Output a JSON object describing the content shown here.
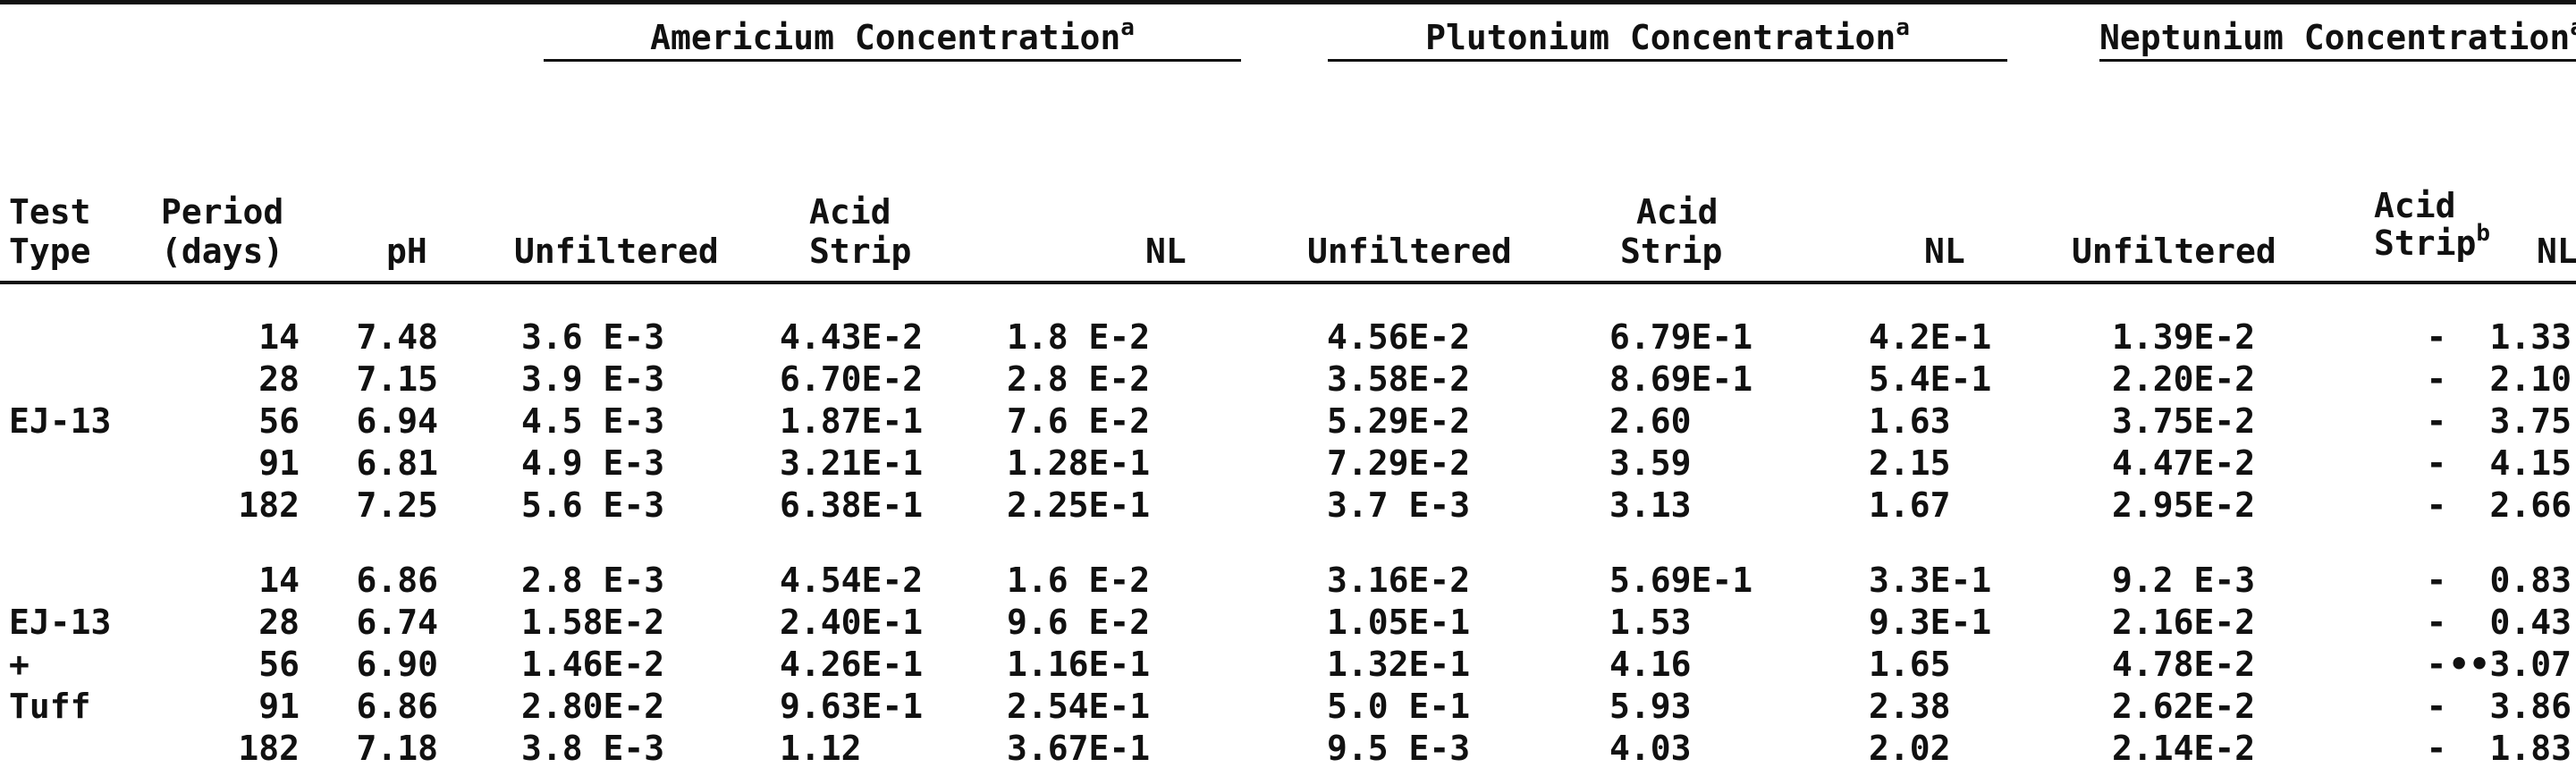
{
  "headers": {
    "groups": [
      {
        "label": "Americium Concentration",
        "sup": "a"
      },
      {
        "label": "Plutonium Concentration",
        "sup": "a"
      },
      {
        "label": "Neptunium Concentration",
        "sup": "a"
      }
    ],
    "test_type": [
      "Test",
      "Type"
    ],
    "period": [
      "Period",
      "(days)"
    ],
    "ph": "pH",
    "unfiltered": "Unfiltered",
    "acid": "Acid",
    "strip": "Strip",
    "strip_b_sup": "b",
    "nl": "NL"
  },
  "groups": [
    {
      "label_lines": [
        "",
        "",
        "EJ-13",
        "",
        ""
      ],
      "rows": [
        {
          "period": "14",
          "ph": "7.48",
          "am": [
            "3.6 E-3",
            "4.43E-2",
            "1.8 E-2"
          ],
          "pu": [
            "4.56E-2",
            "6.79E-1",
            "4.2E-1"
          ],
          "np": [
            "1.39E-2",
            "-",
            "1.33"
          ]
        },
        {
          "period": "28",
          "ph": "7.15",
          "am": [
            "3.9 E-3",
            "6.70E-2",
            "2.8 E-2"
          ],
          "pu": [
            "3.58E-2",
            "8.69E-1",
            "5.4E-1"
          ],
          "np": [
            "2.20E-2",
            "-",
            "2.10"
          ]
        },
        {
          "period": "56",
          "ph": "6.94",
          "am": [
            "4.5 E-3",
            "1.87E-1",
            "7.6 E-2"
          ],
          "pu": [
            "5.29E-2",
            "2.60",
            "1.63"
          ],
          "np": [
            "3.75E-2",
            "-",
            "3.75"
          ]
        },
        {
          "period": "91",
          "ph": "6.81",
          "am": [
            "4.9 E-3",
            "3.21E-1",
            "1.28E-1"
          ],
          "pu": [
            "7.29E-2",
            "3.59",
            "2.15"
          ],
          "np": [
            "4.47E-2",
            "-",
            "4.15"
          ]
        },
        {
          "period": "182",
          "ph": "7.25",
          "am": [
            "5.6 E-3",
            "6.38E-1",
            "2.25E-1"
          ],
          "pu": [
            "3.7 E-3",
            "3.13",
            "1.67"
          ],
          "np": [
            "2.95E-2",
            "-",
            "2.66"
          ]
        }
      ]
    },
    {
      "label_lines": [
        "",
        "EJ-13",
        "+",
        "Tuff",
        ""
      ],
      "rows": [
        {
          "period": "14",
          "ph": "6.86",
          "am": [
            "2.8 E-3",
            "4.54E-2",
            "1.6 E-2"
          ],
          "pu": [
            "3.16E-2",
            "5.69E-1",
            "3.3E-1"
          ],
          "np": [
            "9.2 E-3",
            "-",
            "0.83"
          ]
        },
        {
          "period": "28",
          "ph": "6.74",
          "am": [
            "1.58E-2",
            "2.40E-1",
            "9.6 E-2"
          ],
          "pu": [
            "1.05E-1",
            "1.53",
            "9.3E-1"
          ],
          "np": [
            "2.16E-2",
            "-",
            "0.43"
          ]
        },
        {
          "period": "56",
          "ph": "6.90",
          "am": [
            "1.46E-2",
            "4.26E-1",
            "1.16E-1"
          ],
          "pu": [
            "1.32E-1",
            "4.16",
            "1.65"
          ],
          "np": [
            "4.78E-2",
            "-",
            "••3.07"
          ]
        },
        {
          "period": "91",
          "ph": "6.86",
          "am": [
            "2.80E-2",
            "9.63E-1",
            "2.54E-1"
          ],
          "pu": [
            "5.0 E-1",
            "5.93",
            "2.38"
          ],
          "np": [
            "2.62E-2",
            "-",
            "3.86"
          ]
        },
        {
          "period": "182",
          "ph": "7.18",
          "am": [
            "3.8 E-3",
            "1.12",
            "3.67E-1"
          ],
          "pu": [
            "9.5 E-3",
            "4.03",
            "2.02"
          ],
          "np": [
            "2.14E-2",
            "-",
            "1.83"
          ]
        }
      ]
    }
  ]
}
